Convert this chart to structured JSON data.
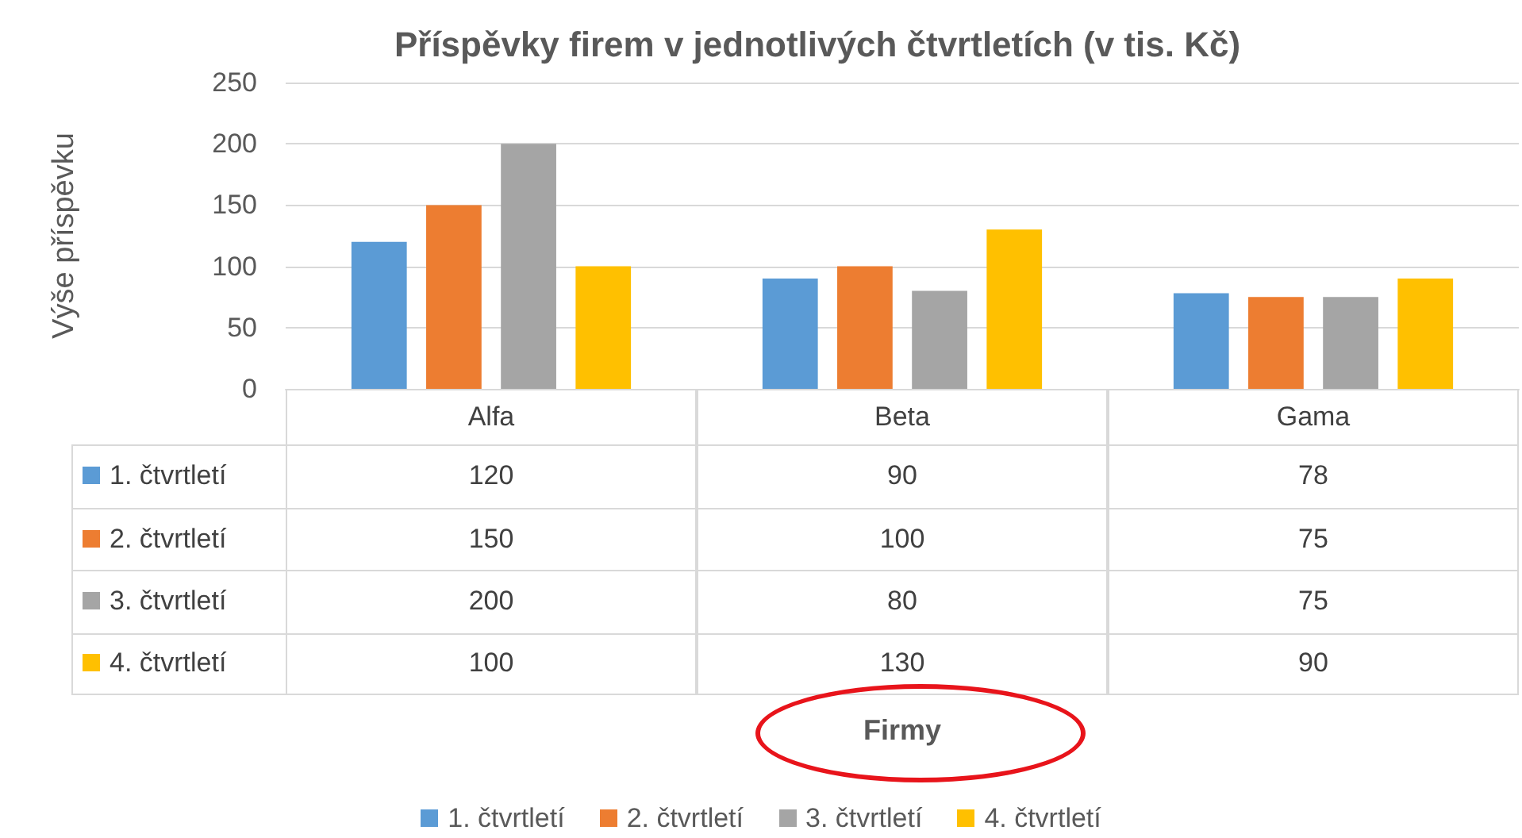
{
  "chart_data": {
    "type": "bar",
    "title": "Příspěvky firem v jednotlivých čtvrtletích (v tis. Kč)",
    "annotations": [
      "Firmy"
    ],
    "ylabel": "Výše příspěvku",
    "categories": [
      "Alfa",
      "Beta",
      "Gama"
    ],
    "series": [
      {
        "name": "1. čtvrtletí",
        "color": "#5b9bd5",
        "values": [
          120,
          90,
          78
        ]
      },
      {
        "name": "2. čtvrtletí",
        "color": "#ed7d31",
        "values": [
          150,
          100,
          75
        ]
      },
      {
        "name": "3. čtvrtletí",
        "color": "#a5a5a5",
        "values": [
          200,
          80,
          75
        ]
      },
      {
        "name": "4. čtvrtletí",
        "color": "#ffc000",
        "values": [
          100,
          130,
          90
        ]
      }
    ],
    "ylim": [
      0,
      250
    ],
    "yticks": [
      0,
      50,
      100,
      150,
      200,
      250
    ],
    "grid": "y",
    "legend": "bottom",
    "data_labels": true
  }
}
